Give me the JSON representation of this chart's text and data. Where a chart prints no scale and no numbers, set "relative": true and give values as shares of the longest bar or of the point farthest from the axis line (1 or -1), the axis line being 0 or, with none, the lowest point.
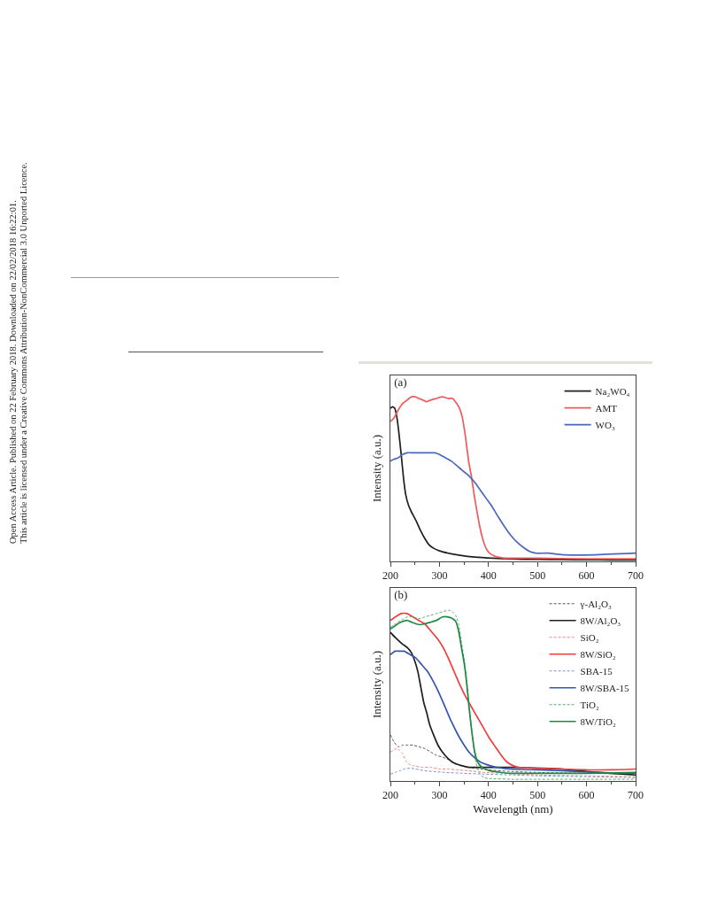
{
  "chart_data": [
    {
      "type": "line",
      "title": "(a)",
      "ylabel": "Intensity (a.u.)",
      "relative": true,
      "xlim": [
        200,
        700
      ],
      "xticks": [
        200,
        {
          "value": 250,
          "label": null
        },
        300,
        {
          "value": 350,
          "label": null
        },
        400,
        {
          "value": 450,
          "label": null
        },
        500,
        {
          "value": 550,
          "label": null
        },
        600,
        {
          "value": 650,
          "label": null
        },
        700
      ],
      "legend": "top right",
      "tick_labels": "x",
      "annotations": [
        "Open Access Article. Published on 22 February 2018. Downloaded on 22/02/2018 16:22:01.",
        "This article is licensed under a Creative Commons Attribution-NonCommercial 3.0 Unported Licence."
      ],
      "series": [
        {
          "name": "Na₂WO₄",
          "color": "#1f1f1f",
          "x": [
            200,
            204,
            209,
            213,
            217,
            222,
            227,
            231,
            237,
            243,
            252,
            261,
            270,
            279,
            288,
            300,
            318,
            342,
            372,
            409,
            445,
            469,
            500,
            550,
            600,
            650,
            700
          ],
          "values": [
            0.93,
            0.94,
            0.93,
            0.88,
            0.79,
            0.65,
            0.5,
            0.41,
            0.34,
            0.3,
            0.25,
            0.19,
            0.14,
            0.1,
            0.08,
            0.064,
            0.05,
            0.037,
            0.026,
            0.019,
            0.015,
            0.013,
            0.012,
            0.011,
            0.01,
            0.009,
            0.008
          ]
        },
        {
          "name": "AMT",
          "color": "#f05a5a",
          "x": [
            200,
            207,
            216,
            225,
            234,
            243,
            251,
            258,
            267,
            273,
            282,
            294,
            306,
            318,
            327,
            335,
            341,
            347,
            353,
            356,
            360,
            365,
            370,
            375,
            381,
            387,
            395,
            402,
            414,
            433,
            457,
            500,
            600,
            700
          ],
          "values": [
            0.85,
            0.87,
            0.92,
            0.96,
            0.98,
            1.0,
            1.0,
            0.99,
            0.98,
            0.97,
            0.98,
            0.99,
            1.0,
            0.99,
            0.99,
            0.96,
            0.93,
            0.87,
            0.76,
            0.69,
            0.6,
            0.52,
            0.42,
            0.33,
            0.23,
            0.15,
            0.08,
            0.05,
            0.03,
            0.02,
            0.02,
            0.02,
            0.015,
            0.015
          ]
        },
        {
          "name": "WO₃",
          "color": "#4a68bd",
          "x": [
            200,
            207,
            216,
            225,
            234,
            246,
            264,
            282,
            291,
            300,
            312,
            324,
            336,
            348,
            360,
            372,
            384,
            396,
            408,
            420,
            433,
            445,
            457,
            469,
            484,
            496,
            520,
            556,
            616,
            700
          ],
          "values": [
            0.61,
            0.62,
            0.63,
            0.65,
            0.66,
            0.66,
            0.66,
            0.66,
            0.66,
            0.65,
            0.63,
            0.61,
            0.58,
            0.55,
            0.52,
            0.48,
            0.43,
            0.38,
            0.33,
            0.27,
            0.21,
            0.16,
            0.12,
            0.09,
            0.06,
            0.05,
            0.05,
            0.04,
            0.04,
            0.05
          ]
        }
      ]
    },
    {
      "type": "line",
      "title": "(b)",
      "xlabel": "Wavelength (nm)",
      "ylabel": "Intensity (a.u.)",
      "relative": true,
      "xlim": [
        200,
        700
      ],
      "xticks": [
        200,
        {
          "value": 250,
          "label": null
        },
        300,
        {
          "value": 350,
          "label": null
        },
        400,
        {
          "value": 450,
          "label": null
        },
        500,
        {
          "value": 550,
          "label": null
        },
        600,
        {
          "value": 650,
          "label": null
        },
        700
      ],
      "legend": "top right",
      "tick_labels": "x",
      "series": [
        {
          "name": "γ-Al₂O₃",
          "color": "#555555",
          "line_style": "dashed",
          "x": [
            200,
            207,
            216,
            225,
            234,
            246,
            258,
            270,
            282,
            294,
            306,
            318,
            330,
            342,
            360,
            400,
            450,
            500,
            600,
            700
          ],
          "values": [
            0.27,
            0.23,
            0.2,
            0.21,
            0.21,
            0.21,
            0.2,
            0.19,
            0.17,
            0.15,
            0.14,
            0.125,
            0.105,
            0.09,
            0.08,
            0.065,
            0.055,
            0.05,
            0.045,
            0.04
          ]
        },
        {
          "name": "8W/Al₂O₃",
          "color": "#1f1f1f",
          "line_style": "solid",
          "x": [
            200,
            210,
            225,
            235,
            243,
            250,
            256,
            262,
            268,
            274,
            280,
            288,
            297,
            306,
            318,
            330,
            345,
            360,
            380,
            450,
            500,
            550,
            600,
            650,
            700
          ],
          "values": [
            0.87,
            0.84,
            0.8,
            0.78,
            0.75,
            0.7,
            0.64,
            0.55,
            0.46,
            0.4,
            0.33,
            0.27,
            0.21,
            0.17,
            0.13,
            0.105,
            0.09,
            0.08,
            0.08,
            0.08,
            0.075,
            0.07,
            0.055,
            0.045,
            0.035
          ]
        },
        {
          "name": "SiO₂",
          "color": "#f28080",
          "line_style": "dashed",
          "x": [
            200,
            207,
            213,
            219,
            225,
            231,
            237,
            246,
            264,
            282,
            300,
            318,
            336,
            360,
            390,
            433,
            469,
            500,
            600,
            700
          ],
          "values": [
            0.17,
            0.18,
            0.19,
            0.18,
            0.16,
            0.12,
            0.1,
            0.09,
            0.08,
            0.08,
            0.07,
            0.07,
            0.065,
            0.06,
            0.05,
            0.045,
            0.04,
            0.035,
            0.03,
            0.025
          ]
        },
        {
          "name": "8W/SiO₂",
          "color": "#f03c3c",
          "line_style": "solid",
          "x": [
            200,
            210,
            222,
            234,
            246,
            258,
            270,
            282,
            294,
            306,
            318,
            330,
            342,
            354,
            366,
            378,
            390,
            402,
            414,
            426,
            438,
            450,
            462,
            500,
            550,
            600,
            650,
            700
          ],
          "values": [
            0.94,
            0.96,
            0.98,
            0.98,
            0.96,
            0.94,
            0.92,
            0.88,
            0.84,
            0.79,
            0.72,
            0.64,
            0.56,
            0.49,
            0.43,
            0.37,
            0.31,
            0.25,
            0.2,
            0.15,
            0.11,
            0.09,
            0.08,
            0.075,
            0.07,
            0.065,
            0.065,
            0.07
          ]
        },
        {
          "name": "SBA-15",
          "color": "#7f8fd0",
          "line_style": "dashed",
          "x": [
            200,
            210,
            219,
            228,
            240,
            252,
            270,
            288,
            312,
            348,
            390,
            450,
            500,
            600,
            700
          ],
          "values": [
            0.04,
            0.05,
            0.06,
            0.07,
            0.075,
            0.07,
            0.06,
            0.055,
            0.05,
            0.045,
            0.04,
            0.035,
            0.03,
            0.025,
            0.02
          ]
        },
        {
          "name": "8W/SBA-15",
          "color": "#3556b0",
          "line_style": "solid",
          "x": [
            200,
            210,
            219,
            228,
            240,
            252,
            264,
            276,
            288,
            300,
            312,
            324,
            336,
            348,
            360,
            372,
            384,
            397,
            409,
            421,
            445,
            500,
            550,
            600,
            650,
            700
          ],
          "values": [
            0.74,
            0.76,
            0.76,
            0.76,
            0.74,
            0.72,
            0.68,
            0.64,
            0.58,
            0.51,
            0.43,
            0.35,
            0.28,
            0.22,
            0.17,
            0.135,
            0.11,
            0.095,
            0.085,
            0.078,
            0.07,
            0.065,
            0.06,
            0.052,
            0.048,
            0.045
          ]
        },
        {
          "name": "TiO₂",
          "color": "#5aaa6e",
          "line_style": "dashed",
          "x": [
            200,
            210,
            222,
            234,
            246,
            258,
            270,
            282,
            294,
            306,
            318,
            327,
            333,
            339,
            345,
            351,
            356,
            360,
            365,
            370,
            375,
            381,
            390,
            400,
            450,
            500,
            600,
            700
          ],
          "values": [
            0.9,
            0.92,
            0.94,
            0.96,
            0.96,
            0.95,
            0.96,
            0.97,
            0.98,
            0.99,
            1.0,
            0.99,
            0.97,
            0.92,
            0.81,
            0.7,
            0.58,
            0.46,
            0.32,
            0.19,
            0.1,
            0.05,
            0.02,
            0.015,
            0.01,
            0.01,
            0.01,
            0.01
          ]
        },
        {
          "name": "8W/TiO₂",
          "color": "#1e8a45",
          "line_style": "solid",
          "x": [
            200,
            210,
            222,
            234,
            243,
            252,
            261,
            270,
            282,
            294,
            306,
            318,
            327,
            333,
            339,
            345,
            351,
            356,
            360,
            366,
            372,
            378,
            387,
            402,
            421,
            445,
            500,
            600,
            700
          ],
          "values": [
            0.89,
            0.91,
            0.93,
            0.94,
            0.93,
            0.92,
            0.915,
            0.92,
            0.93,
            0.94,
            0.96,
            0.96,
            0.95,
            0.935,
            0.88,
            0.78,
            0.68,
            0.56,
            0.44,
            0.29,
            0.17,
            0.11,
            0.08,
            0.06,
            0.052,
            0.045,
            0.045,
            0.045,
            0.05
          ]
        }
      ]
    }
  ]
}
